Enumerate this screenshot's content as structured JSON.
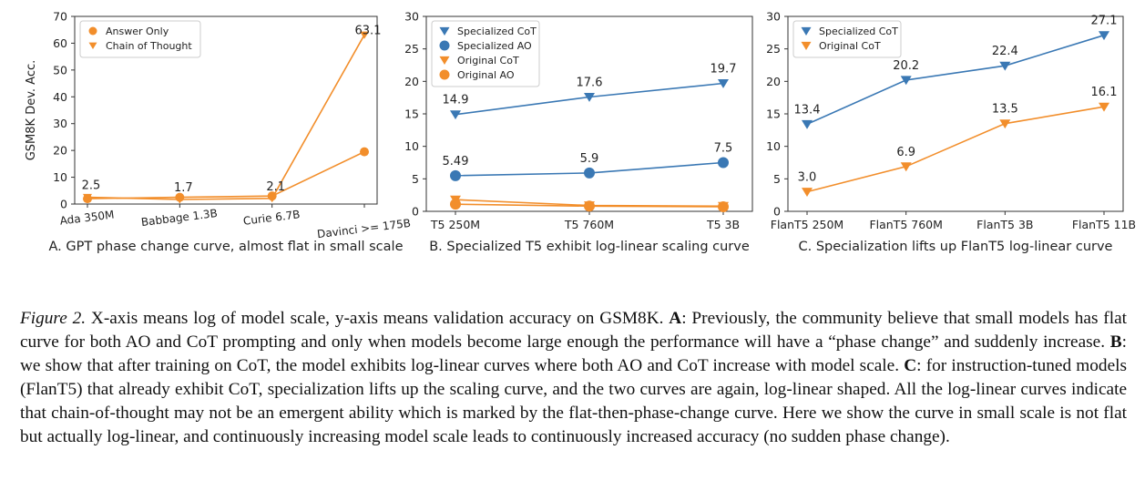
{
  "chart_data": [
    {
      "type": "line",
      "subtitle": "A. GPT phase change curve, almost flat in small scale",
      "ylabel": "GSM8K Dev. Acc.",
      "categories": [
        "Ada 350M",
        "Babbage 1.3B",
        "Curie 6.7B",
        "Davinci >= 175B"
      ],
      "ylim": [
        0,
        70
      ],
      "yticks": [
        0,
        10,
        20,
        30,
        40,
        50,
        60,
        70
      ],
      "legend": "top-left",
      "series": [
        {
          "name": "Answer Only",
          "marker": "circle",
          "color": "#f28e2b",
          "values": [
            2.0,
            2.5,
            3.0,
            19.5
          ],
          "labels": [
            null,
            null,
            null,
            null
          ]
        },
        {
          "name": "Chain of Thought",
          "marker": "triangle-down",
          "color": "#f28e2b",
          "values": [
            2.5,
            1.7,
            2.1,
            63.1
          ],
          "labels": [
            "2.5",
            "1.7",
            "2.1",
            "63.1"
          ]
        }
      ]
    },
    {
      "type": "line",
      "subtitle": "B. Specialized T5 exhibit log-linear scaling curve",
      "categories": [
        "T5 250M",
        "T5 760M",
        "T5 3B"
      ],
      "ylim": [
        0,
        30
      ],
      "yticks": [
        0,
        5,
        10,
        15,
        20,
        25,
        30
      ],
      "legend": "top-left",
      "series": [
        {
          "name": "Specialized CoT",
          "marker": "triangle-down",
          "color": "#3a78b4",
          "values": [
            14.9,
            17.6,
            19.7
          ],
          "labels": [
            "14.9",
            "17.6",
            "19.7"
          ]
        },
        {
          "name": "Specialized AO",
          "marker": "circle",
          "color": "#3a78b4",
          "values": [
            5.49,
            5.9,
            7.5
          ],
          "labels": [
            "5.49",
            "5.9",
            "7.5"
          ]
        },
        {
          "name": "Original CoT",
          "marker": "triangle-down",
          "color": "#f28e2b",
          "values": [
            1.8,
            0.9,
            0.8
          ],
          "labels": [
            null,
            null,
            null
          ]
        },
        {
          "name": "Original AO",
          "marker": "circle",
          "color": "#f28e2b",
          "values": [
            1.1,
            0.8,
            0.7
          ],
          "labels": [
            null,
            null,
            null
          ]
        }
      ]
    },
    {
      "type": "line",
      "subtitle": "C. Specialization lifts up FlanT5 log-linear curve",
      "categories": [
        "FlanT5 250M",
        "FlanT5 760M",
        "FlanT5 3B",
        "FlanT5 11B"
      ],
      "ylim": [
        0,
        30
      ],
      "yticks": [
        0,
        5,
        10,
        15,
        20,
        25,
        30
      ],
      "legend": "top-left",
      "series": [
        {
          "name": "Specialized CoT",
          "marker": "triangle-down",
          "color": "#3a78b4",
          "values": [
            13.4,
            20.2,
            22.4,
            27.1
          ],
          "labels": [
            "13.4",
            "20.2",
            "22.4",
            "27.1"
          ]
        },
        {
          "name": "Original CoT",
          "marker": "triangle-down",
          "color": "#f28e2b",
          "values": [
            3.0,
            6.9,
            13.5,
            16.1
          ],
          "labels": [
            "3.0",
            "6.9",
            "13.5",
            "16.1"
          ]
        }
      ]
    }
  ],
  "caption": {
    "label": "Figure 2.",
    "part1": " X-axis means log of model scale, y-axis means validation accuracy on GSM8K. ",
    "a_tag": "A",
    "part2": ": Previously, the community believe that small models has flat curve for both AO and CoT prompting and only when models become large enough the performance will have a “phase change” and suddenly increase. ",
    "b_tag": "B",
    "part3": ": we show that after training on CoT, the model exhibits log-linear curves where both AO and CoT increase with model scale. ",
    "c_tag": "C",
    "part4": ": for instruction-tuned models (FlanT5) that already exhibit CoT, specialization lifts up the scaling curve, and the two curves are again, log-linear shaped. All the log-linear curves indicate that chain-of-thought may not be an emergent ability which is marked by the flat-then-phase-change curve. Here we show the curve in small scale is not flat but actually log-linear, and continuously increasing model scale leads to continuously increased accuracy (no sudden phase change)."
  }
}
